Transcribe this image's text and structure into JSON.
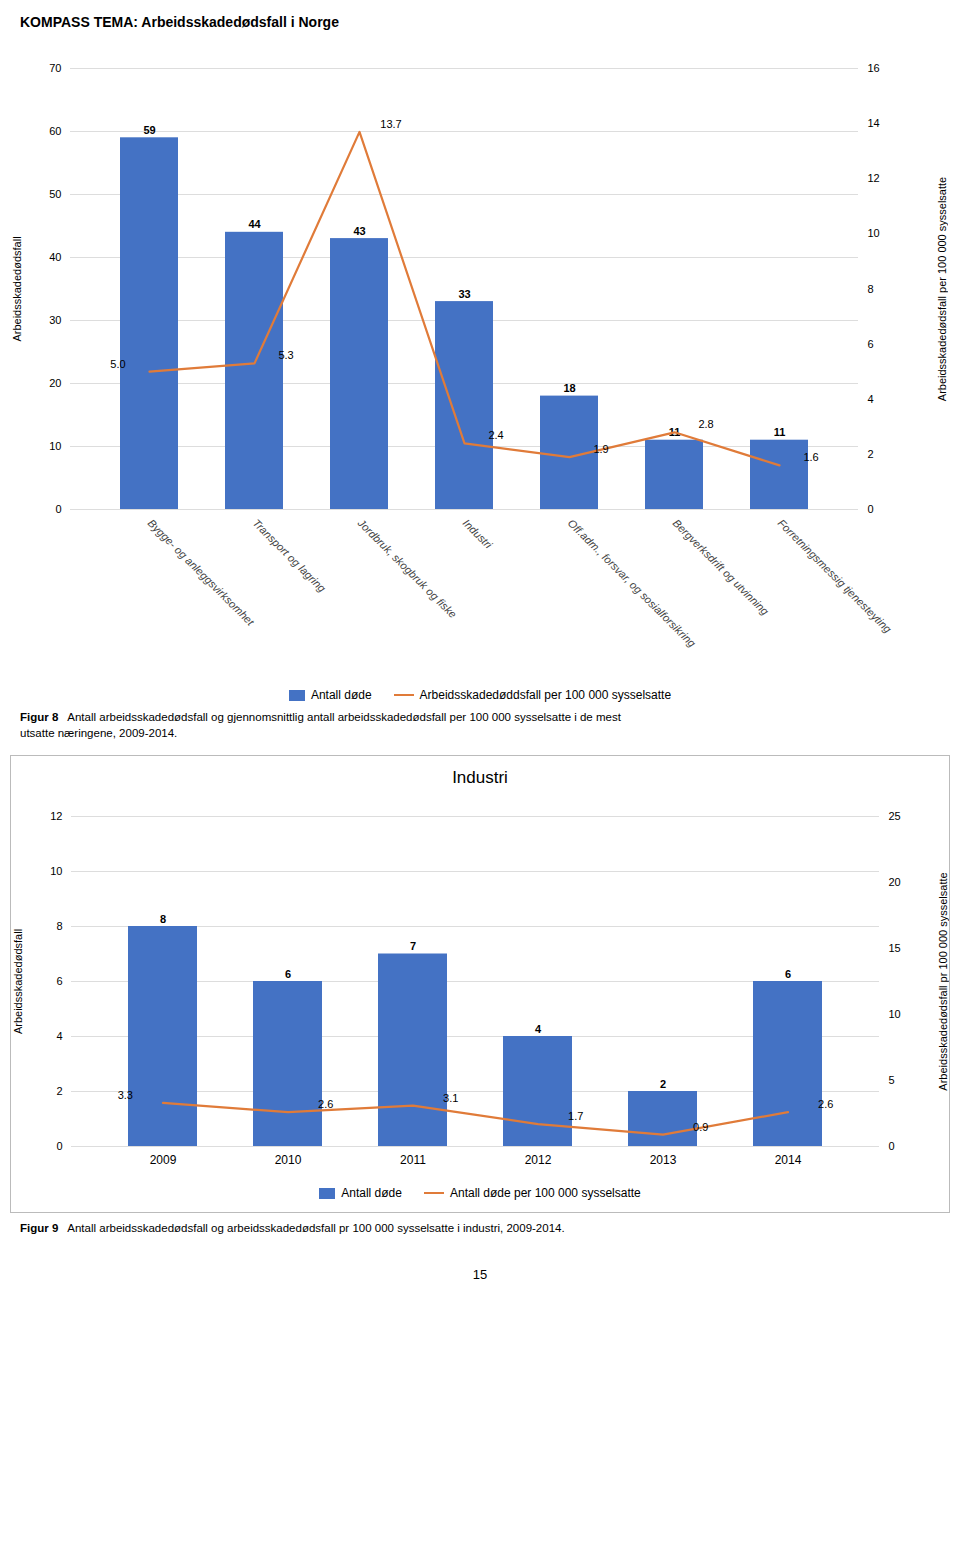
{
  "page_title": "KOMPASS TEMA: Arbeidsskadedødsfall i Norge",
  "page_number": "15",
  "chart_data": [
    {
      "type": "bar",
      "categories": [
        "Bygge- og anleggsvirksomhet",
        "Transport og lagring",
        "Jordbruk, skogbruk og fiske",
        "Industri",
        "Off.adm., forsvar, og sosialforsikring",
        "Bergverksdrift og utvinning",
        "Forretningsmessig tjenesteyting"
      ],
      "series": [
        {
          "name": "Antall døde",
          "type": "bar",
          "color": "#4472C4",
          "values": [
            59,
            44,
            43,
            33,
            18,
            11,
            11
          ]
        },
        {
          "name": "Arbeidsskadedøddsfall per 100 000 sysselsatte",
          "type": "line",
          "axis": "y2",
          "color": "#E07B39",
          "values": [
            5.0,
            5.3,
            13.7,
            2.4,
            1.9,
            2.8,
            1.6
          ],
          "value_labels": [
            "5.0",
            "5.3",
            "13.7",
            "2.4",
            "1.9",
            "2.8",
            "1.6"
          ]
        }
      ],
      "ylabel": "Arbeidsskadedødsfall",
      "y2label": "Arbeidsskadedødsfall per 100 000 sysselsatte",
      "ylim": [
        0,
        70
      ],
      "yticks": [
        0,
        10,
        20,
        30,
        40,
        50,
        60,
        70
      ],
      "y2lim": [
        0,
        16
      ],
      "y2ticks": [
        0,
        2,
        4,
        6,
        8,
        10,
        12,
        14,
        16
      ],
      "grid": true,
      "legend": "bottom",
      "data_labels": true,
      "caption_label": "Figur 8",
      "caption": "   Antall arbeidsskadedødsfall og gjennomsnittlig antall arbeidsskadedødsfall per 100 000 sysselsatte i de mest\nutsatte næringene, 2009-2014."
    },
    {
      "type": "bar",
      "title": "Industri",
      "categories": [
        "2009",
        "2010",
        "2011",
        "2012",
        "2013",
        "2014"
      ],
      "series": [
        {
          "name": "Antall døde",
          "type": "bar",
          "color": "#4472C4",
          "values": [
            8,
            6,
            7,
            4,
            2,
            6
          ]
        },
        {
          "name": "Antall døde per 100 000 sysselsatte",
          "type": "line",
          "axis": "y2",
          "color": "#E07B39",
          "values": [
            3.3,
            2.6,
            3.1,
            1.7,
            0.9,
            2.6
          ]
        }
      ],
      "ylabel": "Arbeidsskadedødsfall",
      "y2label": "Arbeidsskadedødsfall pr 100 000 sysselsatte",
      "ylim": [
        0,
        12
      ],
      "yticks": [
        0,
        2,
        4,
        6,
        8,
        10,
        12
      ],
      "y2lim": [
        0,
        25
      ],
      "y2ticks": [
        0,
        5,
        10,
        15,
        20,
        25
      ],
      "grid": true,
      "legend": "bottom",
      "data_labels": true,
      "caption_label": "Figur 9",
      "caption": "   Antall arbeidsskadedødsfall og arbeidsskadedødsfall pr 100 000 sysselsatte i industri, 2009-2014."
    }
  ]
}
